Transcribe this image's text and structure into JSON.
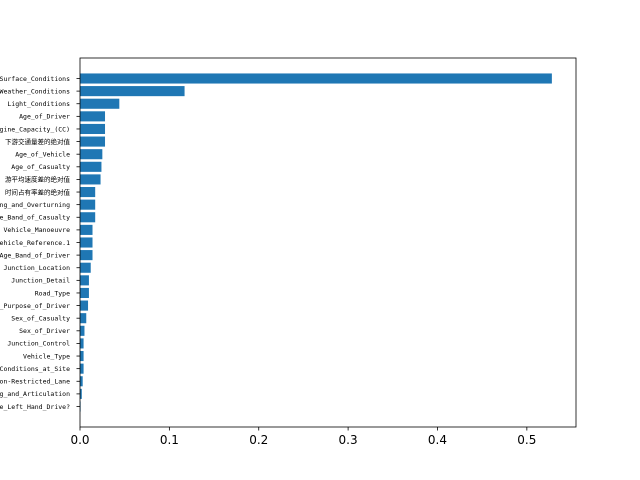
{
  "chart_data": {
    "type": "bar",
    "orientation": "horizontal",
    "title": "",
    "xlabel": "",
    "ylabel": "",
    "bar_color": "#1f77b4",
    "xlim": [
      0,
      0.555
    ],
    "xticks": [
      0,
      0.1,
      0.2,
      0.3,
      0.4,
      0.5
    ],
    "xtick_labels": [
      "0.0",
      "0.1",
      "0.2",
      "0.3",
      "0.4",
      "0.5"
    ],
    "grid": false,
    "categories": [
      "Road_Surface_Conditions",
      "Weather_Conditions",
      "Light_Conditions",
      "Age_of_Driver",
      "Engine_Capacity_(CC)",
      "下游交通量差的绝对值",
      "Age_of_Vehicle",
      "Age_of_Casualty",
      "上下游平均速度差的绝对值",
      "时间占有率差的绝对值",
      "Skidding_and_Overturning",
      "Age_Band_of_Casualty",
      "Vehicle_Manoeuvre",
      "Vehicle_Reference.1",
      "Age_Band_of_Driver",
      "Junction_Location",
      "Junction_Detail",
      "Road_Type",
      "Journey_Purpose_of_Driver",
      "Sex_of_Casualty",
      "Sex_of_Driver",
      "Junction_Control",
      "Vehicle_Type",
      "Special_Conditions_at_Site",
      "Junction_Location-Restricted_Lane",
      "Towing_and_Articulation",
      "Was_Vehicle_Left_Hand_Drive?"
    ],
    "category_labels": [
      "d_Surface_Conditions",
      "Weather_Conditions",
      "Light_Conditions",
      "Age_of_Driver",
      "Engine_Capacity_(CC)",
      "下游交通量差的绝对值",
      "Age_of_Vehicle",
      "Age_of_Casualty",
      "游平均速度差的绝对值",
      "时间占有率差的绝对值",
      "ding_and_Overturning",
      "Age_Band_of_Casualty",
      "Vehicle_Manoeuvre",
      "Vehicle_Reference.1",
      "Age_Band_of_Driver",
      "Junction_Location",
      "Junction_Detail",
      "Road_Type",
      "ey_Purpose_of_Driver",
      "Sex_of_Casualty",
      "Sex_of_Driver",
      "Junction_Control",
      "Vehicle_Type",
      "l_Conditions_at_Site",
      "tion-Restricted_Lane",
      "ing_and_Articulation",
      "cle_Left_Hand_Drive?"
    ],
    "values": [
      0.528,
      0.117,
      0.044,
      0.028,
      0.028,
      0.028,
      0.025,
      0.024,
      0.023,
      0.017,
      0.017,
      0.017,
      0.014,
      0.014,
      0.014,
      0.012,
      0.01,
      0.01,
      0.009,
      0.007,
      0.005,
      0.004,
      0.004,
      0.004,
      0.003,
      0.002,
      0.0005
    ]
  }
}
